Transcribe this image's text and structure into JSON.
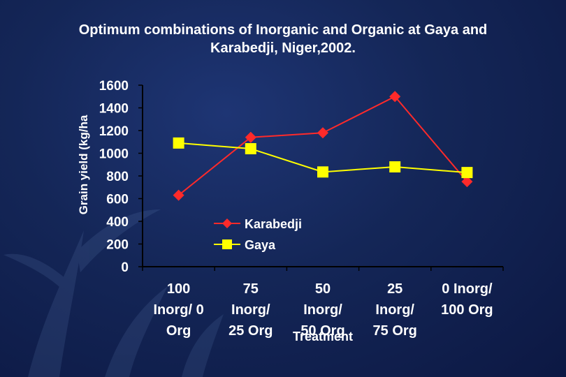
{
  "slide": {
    "title_line1": "Optimum combinations of Inorganic and Organic at Gaya and",
    "title_line2": "Karabedji, Niger,2002."
  },
  "colors": {
    "background": "#142657",
    "text": "#ffffff",
    "karabedji": "#ff2a2a",
    "gaya": "#ffff00"
  },
  "chart_data": {
    "type": "line",
    "title": "Optimum combinations of Inorganic and Organic at Gaya and Karabedji, Niger,2002.",
    "xlabel": "Treatment",
    "ylabel": "Grain yield (kg/ha",
    "ylim": [
      0,
      1600
    ],
    "yticks": [
      "0",
      "200",
      "400",
      "600",
      "800",
      "1000",
      "1200",
      "1400",
      "1600"
    ],
    "categories": [
      [
        "100",
        "Inorg/ 0",
        "Org"
      ],
      [
        "75",
        "Inorg/",
        "25 Org"
      ],
      [
        "50",
        "Inorg/",
        "50 Org"
      ],
      [
        "25",
        "Inorg/",
        "75 Org"
      ],
      [
        "0 Inorg/",
        "100 Org"
      ]
    ],
    "legend_position": "lower-center",
    "grid": false,
    "series": [
      {
        "name": "Karabedji",
        "marker": "diamond",
        "color": "#ff2a2a",
        "values": [
          630,
          1140,
          1180,
          1500,
          750
        ]
      },
      {
        "name": "Gaya",
        "marker": "square",
        "color": "#ffff00",
        "values": [
          1090,
          1040,
          835,
          880,
          830
        ]
      }
    ]
  }
}
